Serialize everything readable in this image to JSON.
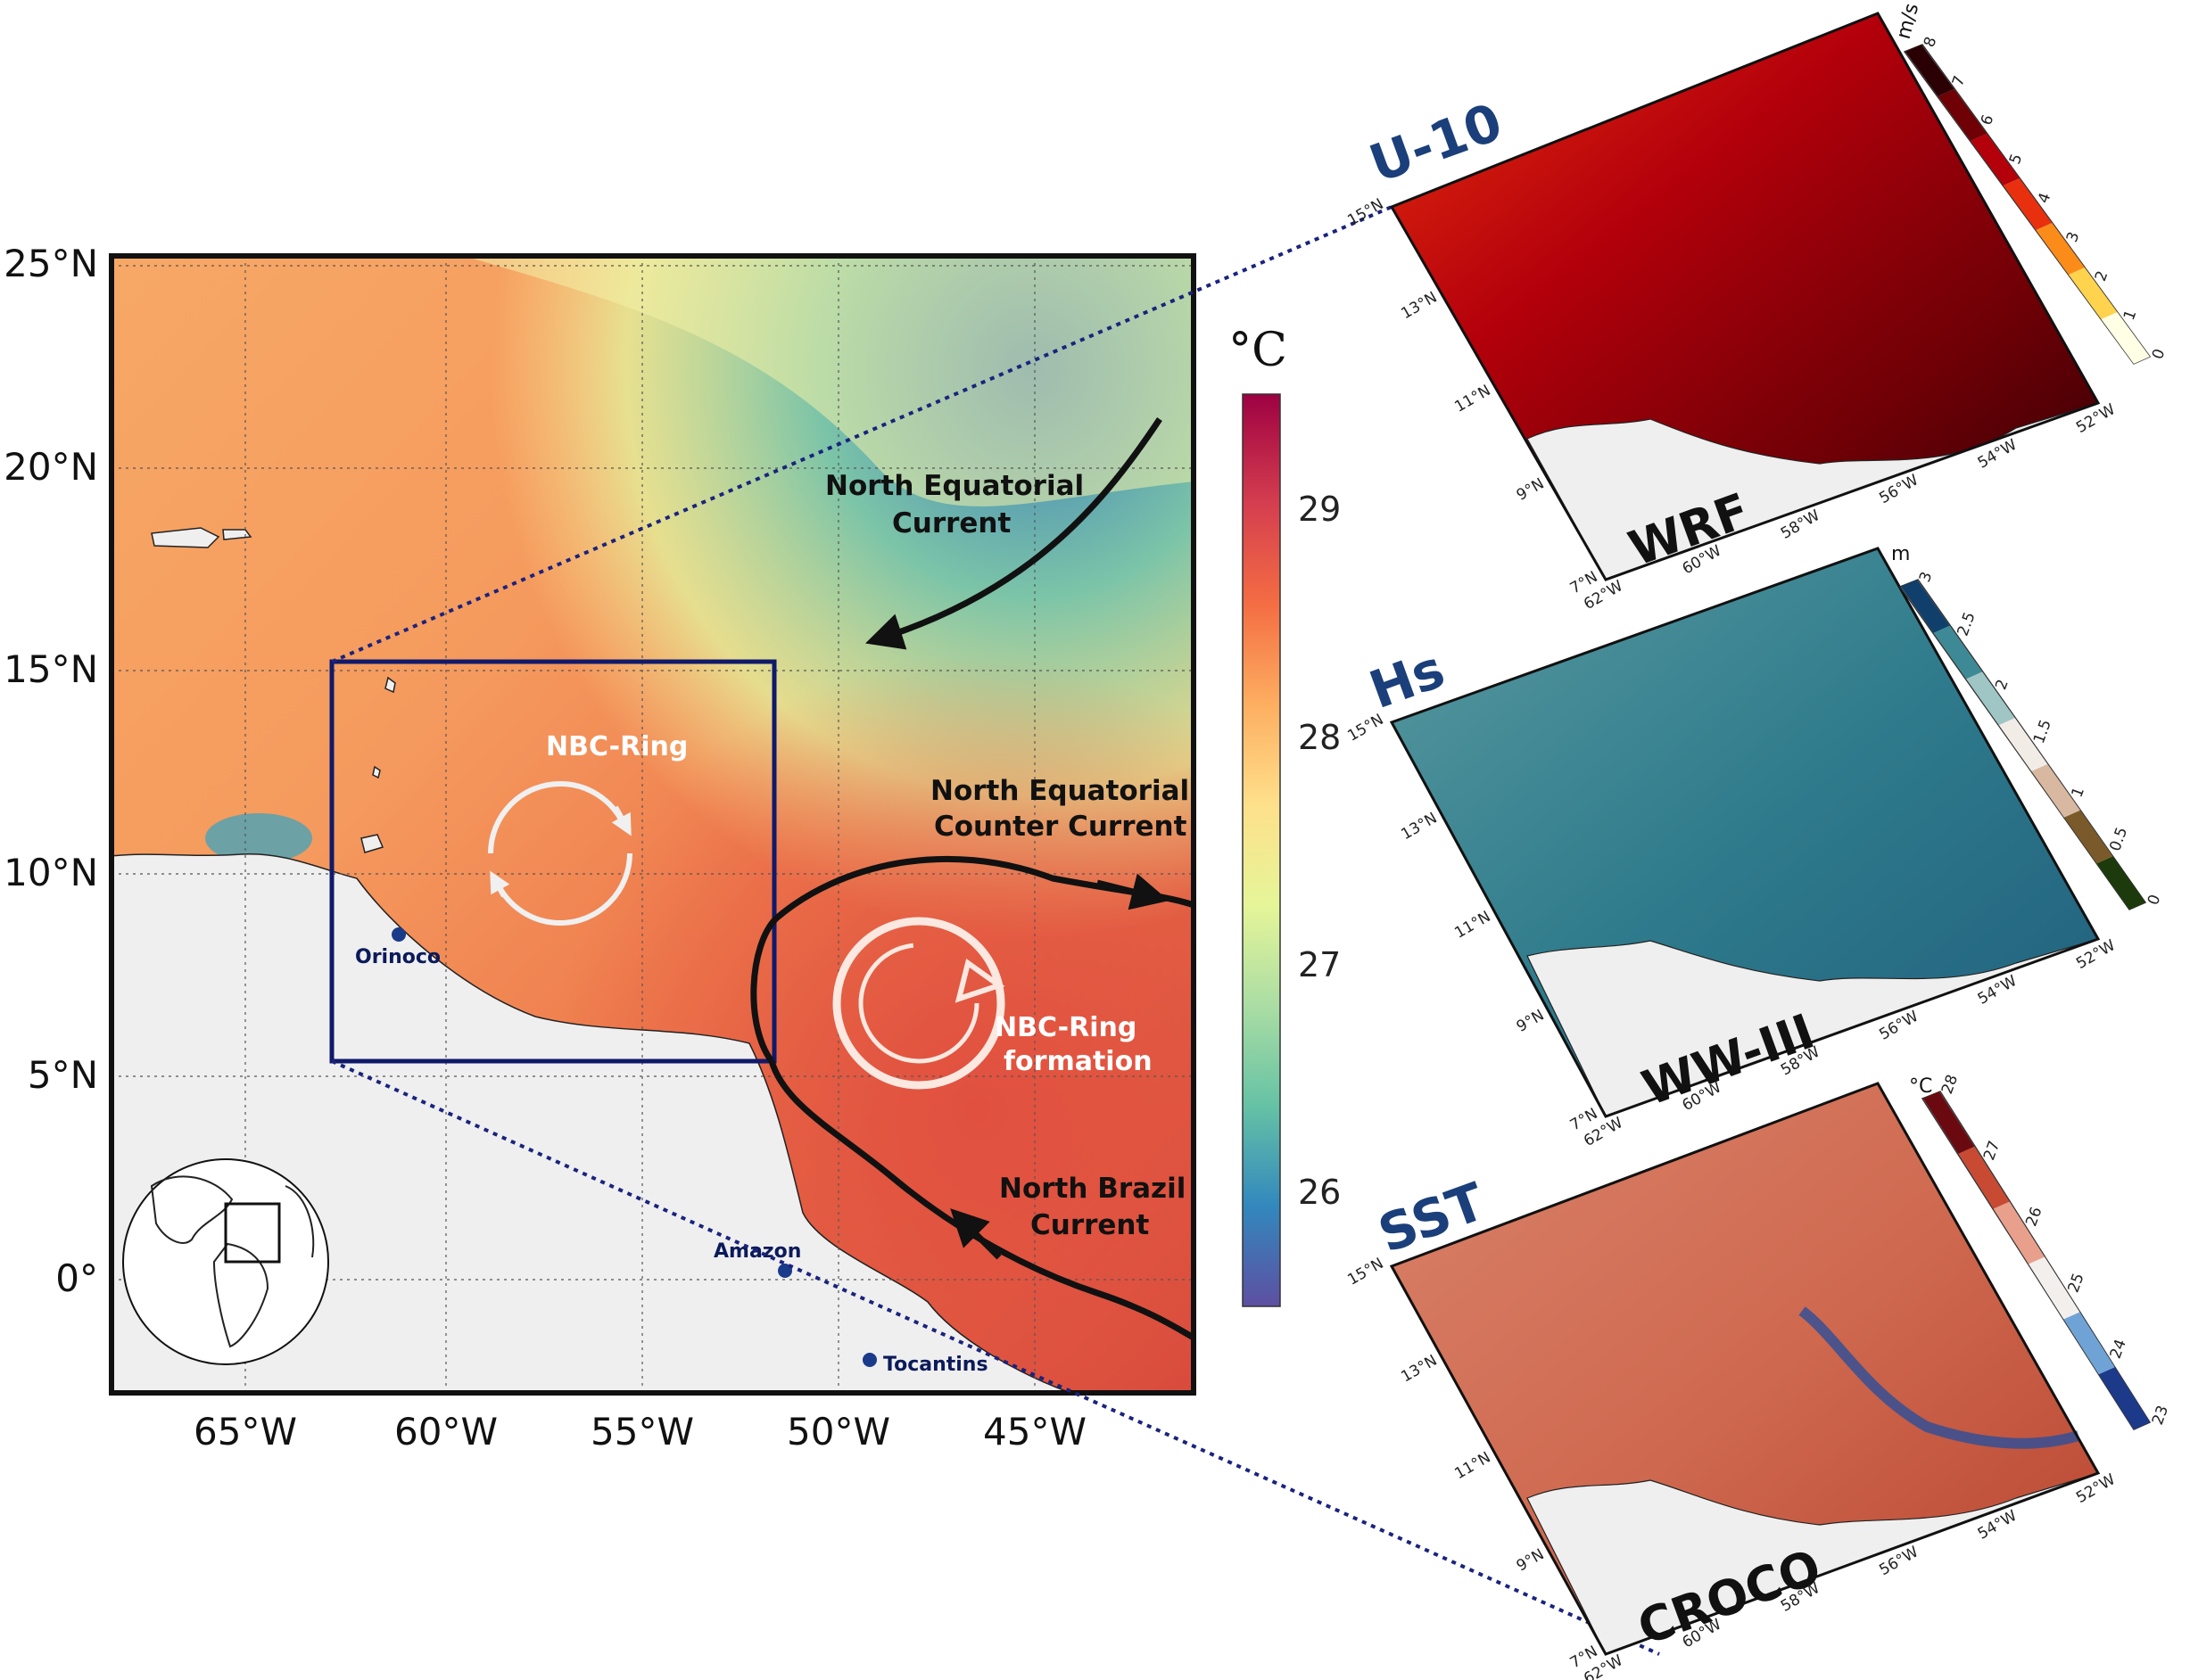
{
  "main_map": {
    "x_ticks": [
      "65°W",
      "60°W",
      "55°W",
      "50°W",
      "45°W"
    ],
    "y_ticks": [
      "25°N",
      "20°N",
      "15°N",
      "10°N",
      "5°N",
      "0°"
    ],
    "colorbar": {
      "unit": "°C",
      "ticks": [
        "29",
        "28",
        "27",
        "26"
      ],
      "colors": [
        "#5e4fa2",
        "#3288bd",
        "#66c2a5",
        "#abdda4",
        "#e6f598",
        "#fee08b",
        "#fdae61",
        "#f46d43",
        "#d53e4f",
        "#9e0142"
      ]
    },
    "currents": {
      "nec": [
        "North Equatorial",
        "Current"
      ],
      "necc": [
        "North Equatorial",
        "Counter Current"
      ],
      "nbc": [
        "North Brazil",
        "Current"
      ]
    },
    "rings": {
      "ring": "NBC-Ring",
      "formation": [
        "NBC-Ring",
        "formation"
      ]
    },
    "rivers": [
      "Orinoco",
      "Amazon",
      "Tocantins"
    ]
  },
  "panels": [
    {
      "title": "U-10",
      "model": "WRF",
      "unit": "m/s",
      "ticks": [
        "8",
        "7",
        "6",
        "5",
        "4",
        "3",
        "2",
        "1",
        "0"
      ],
      "colors": [
        "#ffffe5",
        "#ffd34d",
        "#fb8c1a",
        "#e8300f",
        "#b3000b",
        "#6e0006",
        "#2a0004"
      ]
    },
    {
      "title": "Hs",
      "model": "WW-III",
      "unit": "m",
      "ticks": [
        "3",
        "2.5",
        "2",
        "1.5",
        "1",
        "0.5",
        "0"
      ],
      "colors": [
        "#1d3a0c",
        "#7a5a2a",
        "#d8b8a0",
        "#f2ece6",
        "#9fc5c4",
        "#3d8a96",
        "#0f3f6a"
      ]
    },
    {
      "title": "SST",
      "model": "CROCO",
      "unit": "°C",
      "ticks": [
        "28",
        "27",
        "26",
        "25",
        "24",
        "23"
      ],
      "colors": [
        "#1d3a8a",
        "#6fa3d6",
        "#f2efed",
        "#e8a08c",
        "#c84a33",
        "#6a0a10"
      ]
    }
  ],
  "panel_axis": {
    "lat_ticks": [
      "15°N",
      "13°N",
      "11°N",
      "9°N",
      "7°N"
    ],
    "lon_ticks": [
      "62°W",
      "60°W",
      "58°W",
      "56°W",
      "54°W",
      "52°W"
    ]
  }
}
